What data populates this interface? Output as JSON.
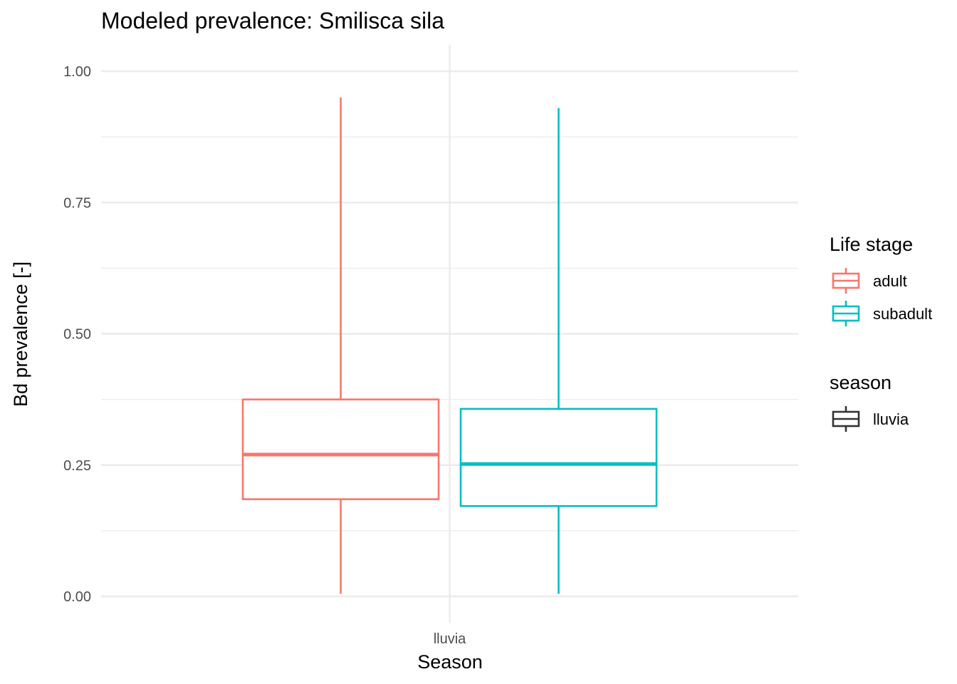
{
  "chart_data": {
    "type": "box",
    "title": "Modeled prevalence: Smilisca sila",
    "xlabel": "Season",
    "ylabel": "Bd prevalence [-]",
    "categories": [
      "lluvia"
    ],
    "ylim": [
      0,
      1
    ],
    "yticks": [
      0.0,
      0.25,
      0.5,
      0.75,
      1.0
    ],
    "ytick_labels": [
      "0.00",
      "0.25",
      "0.50",
      "0.75",
      "1.00"
    ],
    "grid": true,
    "legend_position": "right",
    "series": [
      {
        "name": "adult",
        "color": "#F8766D",
        "category": "lluvia",
        "min": 0.005,
        "q1": 0.185,
        "median": 0.27,
        "q3": 0.375,
        "max": 0.95
      },
      {
        "name": "subadult",
        "color": "#00BFC4",
        "category": "lluvia",
        "min": 0.005,
        "q1": 0.172,
        "median": 0.252,
        "q3": 0.357,
        "max": 0.93
      }
    ],
    "legends": [
      {
        "title": "Life stage",
        "items": [
          {
            "label": "adult",
            "color": "#F8766D"
          },
          {
            "label": "subadult",
            "color": "#00BFC4"
          }
        ]
      },
      {
        "title": "season",
        "items": [
          {
            "label": "lluvia",
            "color": "#333333"
          }
        ]
      }
    ]
  }
}
